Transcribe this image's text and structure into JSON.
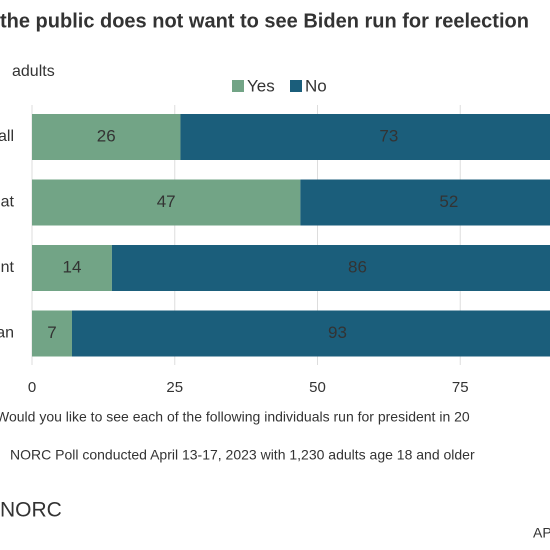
{
  "chart_data": {
    "type": "stacked-bar-horizontal",
    "title": "the public does not want to see Biden run for reelection",
    "subtitle": "adults",
    "categories": [
      "all",
      "at",
      "nt",
      "an"
    ],
    "series": [
      {
        "name": "Yes",
        "color": "#72a486",
        "values": [
          26,
          47,
          14,
          7
        ]
      },
      {
        "name": "No",
        "color": "#1b5e7b",
        "values": [
          73,
          52,
          86,
          93
        ]
      }
    ],
    "xlim": [
      0,
      100
    ],
    "xticks": [
      0,
      25,
      50,
      75
    ],
    "grid": true,
    "notes": [
      "Would you like to see each of the following individuals run for president in 20",
      "NORC Poll conducted April 13-17, 2023 with 1,230 adults age 18 and older"
    ],
    "logo": "NORC",
    "credit": "AP"
  }
}
